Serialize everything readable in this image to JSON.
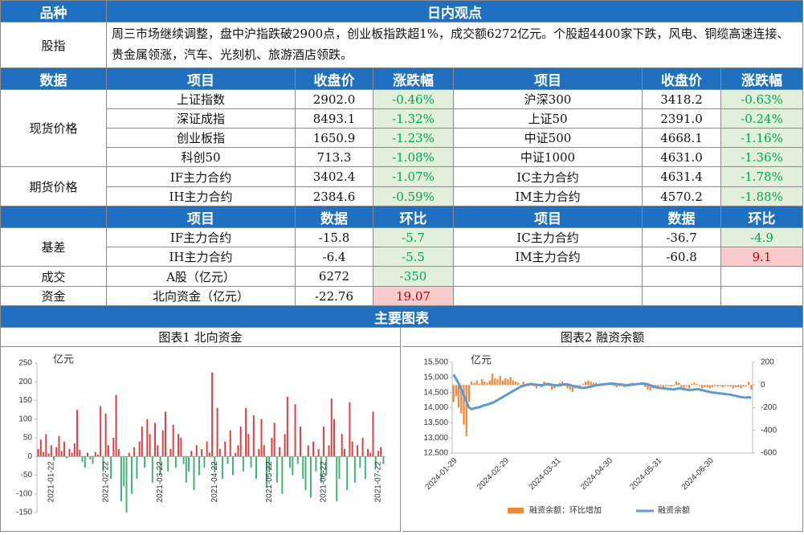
{
  "header": {
    "variety": "品种",
    "view": "日内观点"
  },
  "summary": {
    "label": "股指",
    "text": "周三市场继续调整，盘中沪指跌破2900点，创业板指跌超1%，成交额6272亿元。个股超4400家下跌，风电、铜缆高速连接、贵金属领涨，汽车、光刻机、旅游酒店领跌。"
  },
  "spot_header": [
    "数据",
    "项目",
    "收盘价",
    "涨跌幅",
    "项目",
    "收盘价",
    "涨跌幅"
  ],
  "spot": {
    "label": "现货价格",
    "rows": [
      [
        "上证指数",
        "2902.0",
        "-0.46%",
        "沪深300",
        "3418.2",
        "-0.63%"
      ],
      [
        "深证成指",
        "8493.1",
        "-1.32%",
        "上证50",
        "2391.0",
        "-0.24%"
      ],
      [
        "创业板指",
        "1650.9",
        "-1.23%",
        "中证500",
        "4668.1",
        "-1.16%"
      ],
      [
        "科创50",
        "713.3",
        "-1.08%",
        "中证1000",
        "4631.0",
        "-1.36%"
      ]
    ]
  },
  "futures": {
    "label": "期货价格",
    "rows": [
      [
        "IF主力合约",
        "3402.4",
        "-1.07%",
        "IC主力合约",
        "4631.4",
        "-1.78%"
      ],
      [
        "IH主力合约",
        "2384.6",
        "-0.59%",
        "IM主力合约",
        "4570.2",
        "-1.88%"
      ]
    ]
  },
  "basis_header": [
    "项目",
    "数据",
    "环比",
    "项目",
    "数据",
    "环比"
  ],
  "basis": {
    "label": "基差",
    "rows": [
      [
        "IF主力合约",
        "-15.8",
        "-5.7",
        "IC主力合约",
        "-36.7",
        "-4.9"
      ],
      [
        "IH主力合约",
        "-6.4",
        "-5.5",
        "IM主力合约",
        "-60.8",
        "9.1"
      ]
    ]
  },
  "volume": {
    "label": "成交",
    "row": [
      "A股（亿元）",
      "6272",
      "-350"
    ]
  },
  "flow": {
    "label": "资金",
    "row": [
      "北向资金（亿元）",
      "-22.76",
      "19.07"
    ]
  },
  "section_title": "主要图表",
  "chart_data": [
    {
      "type": "bar",
      "title": "图表1  北向资金",
      "y_label": "亿元",
      "color_positive": "#e0393e",
      "color_negative": "#3cb371",
      "ylim": [
        -150,
        250
      ],
      "yticks": [
        -150,
        -100,
        -50,
        0,
        50,
        100,
        150,
        200,
        250
      ],
      "categories": [
        null,
        null,
        null,
        null,
        null,
        "2021-01-22",
        null,
        null,
        null,
        null,
        null,
        null,
        null,
        null,
        null,
        null,
        null,
        null,
        null,
        null,
        null,
        null,
        null,
        null,
        null,
        null,
        "2021-02-22",
        null,
        null,
        null,
        null,
        null,
        null,
        null,
        null,
        null,
        null,
        null,
        null,
        null,
        null,
        null,
        null,
        null,
        null,
        null,
        null,
        "2021-03-22",
        null,
        null,
        null,
        null,
        null,
        null,
        null,
        null,
        null,
        null,
        null,
        null,
        null,
        null,
        null,
        null,
        null,
        null,
        null,
        null,
        "2021-04-22",
        null,
        null,
        null,
        null,
        null,
        null,
        null,
        null,
        null,
        null,
        null,
        null,
        null,
        null,
        null,
        null,
        null,
        null,
        null,
        null,
        "2021-05-22",
        null,
        null,
        null,
        null,
        null,
        null,
        null,
        null,
        null,
        null,
        null,
        null,
        null,
        null,
        null,
        null,
        null,
        null,
        null,
        null,
        "2021-06-22",
        null,
        null,
        null,
        null,
        null,
        null,
        null,
        null,
        null,
        null,
        null,
        null,
        null,
        null,
        null,
        null,
        null,
        null,
        null,
        null,
        "2021-07-22",
        null,
        null
      ],
      "values": [
        20,
        45,
        12,
        60,
        8,
        30,
        -10,
        25,
        55,
        15,
        40,
        -5,
        20,
        10,
        35,
        125,
        18,
        -15,
        -30,
        10,
        -8,
        -20,
        12,
        5,
        135,
        -40,
        115,
        30,
        -60,
        50,
        165,
        20,
        -120,
        -80,
        -150,
        10,
        -100,
        25,
        -60,
        40,
        80,
        -30,
        100,
        60,
        -70,
        90,
        30,
        -50,
        70,
        120,
        -40,
        20,
        85,
        -30,
        60,
        50,
        -20,
        -70,
        -40,
        15,
        -90,
        30,
        -50,
        20,
        -30,
        40,
        10,
        225,
        -40,
        130,
        20,
        -60,
        40,
        -20,
        70,
        -50,
        10,
        30,
        80,
        -40,
        130,
        60,
        -30,
        110,
        -60,
        20,
        100,
        30,
        -80,
        -40,
        50,
        90,
        -70,
        25,
        -100,
        60,
        160,
        -30,
        -50,
        140,
        -20,
        80,
        -60,
        -90,
        30,
        -110,
        40,
        -40,
        20,
        -70,
        80,
        -50,
        30,
        155,
        100,
        -120,
        -60,
        60,
        20,
        -90,
        145,
        40,
        -70,
        30,
        -30,
        50,
        -60,
        20,
        10,
        120,
        -30,
        15,
        25,
        -20
      ]
    },
    {
      "type": "combo",
      "title": "图表2  融资余额",
      "y_label": "亿元",
      "ylim": [
        12500,
        15500
      ],
      "yticks": [
        {
          "value": 12500,
          "label": "12,500"
        },
        {
          "value": 13000,
          "label": "13,000"
        },
        {
          "value": 13500,
          "label": "13,500"
        },
        {
          "value": 14000,
          "label": "14,000"
        },
        {
          "value": 14500,
          "label": "14,500"
        },
        {
          "value": 15000,
          "label": "15,000"
        },
        {
          "value": 15500,
          "label": "15,500"
        }
      ],
      "y2lim": [
        -600,
        200
      ],
      "y2ticks": [
        -600,
        -400,
        -200,
        0,
        200
      ],
      "legend": "bottom",
      "categories": [
        "2024-01-29",
        null,
        null,
        null,
        null,
        null,
        null,
        null,
        null,
        null,
        null,
        null,
        null,
        null,
        null,
        null,
        null,
        null,
        null,
        null,
        "2024-02-29",
        null,
        null,
        null,
        null,
        null,
        null,
        null,
        null,
        null,
        null,
        null,
        null,
        null,
        null,
        null,
        null,
        null,
        null,
        null,
        "2024-03-31",
        null,
        null,
        null,
        null,
        null,
        null,
        null,
        null,
        null,
        null,
        null,
        null,
        null,
        null,
        null,
        null,
        null,
        null,
        null,
        "2024-04-30",
        null,
        null,
        null,
        null,
        null,
        null,
        null,
        null,
        null,
        null,
        null,
        null,
        null,
        null,
        null,
        null,
        null,
        null,
        "2024-05-31",
        null,
        null,
        null,
        null,
        null,
        null,
        null,
        null,
        null,
        null,
        null,
        null,
        null,
        null,
        null,
        null,
        null,
        null,
        null,
        "2024-06-30",
        null,
        null,
        null,
        null,
        null,
        null,
        null,
        null,
        null,
        null,
        null,
        null,
        null,
        null,
        null,
        null
      ],
      "series": [
        {
          "name": "融资余额：环比增加",
          "type": "bar",
          "axis": "y2",
          "color": "#f0883a",
          "values": [
            -150,
            -100,
            -200,
            -250,
            -350,
            -450,
            -150,
            30,
            20,
            40,
            10,
            50,
            30,
            20,
            40,
            100,
            60,
            50,
            80,
            40,
            60,
            50,
            70,
            40,
            30,
            20,
            -20,
            30,
            10,
            -10,
            20,
            -10,
            -30,
            10,
            -20,
            30,
            20,
            -10,
            -40,
            -30,
            10,
            20,
            30,
            -10,
            -30,
            -40,
            -60,
            -30,
            -20,
            -10,
            10,
            30,
            40,
            30,
            20,
            20,
            10,
            15,
            10,
            10,
            20,
            10,
            -10,
            -20,
            -10,
            -10,
            -20,
            -10,
            15,
            20,
            10,
            15,
            10,
            5,
            -20,
            -40,
            -50,
            -30,
            -30,
            -20,
            -10,
            -20,
            -10,
            -10,
            -15,
            -10,
            30,
            20,
            -20,
            -30,
            -10,
            -30,
            10,
            20,
            10,
            -10,
            -30,
            -20,
            -20,
            -30,
            -20,
            -10,
            -15,
            -10,
            -20,
            -10,
            -10,
            -15,
            -30,
            -20,
            -20,
            -30,
            -15,
            -10,
            30,
            -40
          ]
        },
        {
          "name": "融资余额",
          "type": "line",
          "axis": "y",
          "color": "#5b9bd5",
          "values": [
            15100,
            14950,
            14800,
            14600,
            14400,
            14200,
            14000,
            13950,
            13980,
            14000,
            14020,
            14050,
            14080,
            14100,
            14130,
            14160,
            14200,
            14250,
            14300,
            14350,
            14400,
            14450,
            14500,
            14550,
            14600,
            14650,
            14700,
            14720,
            14750,
            14770,
            14780,
            14770,
            14760,
            14750,
            14740,
            14760,
            14770,
            14780,
            14760,
            14740,
            14730,
            14740,
            14760,
            14780,
            14770,
            14750,
            14720,
            14700,
            14680,
            14660,
            14650,
            14660,
            14680,
            14700,
            14720,
            14740,
            14750,
            14760,
            14770,
            14780,
            14790,
            14800,
            14790,
            14780,
            14770,
            14760,
            14750,
            14740,
            14750,
            14760,
            14770,
            14780,
            14790,
            14800,
            14790,
            14770,
            14740,
            14710,
            14680,
            14660,
            14650,
            14640,
            14630,
            14620,
            14610,
            14600,
            14620,
            14640,
            14630,
            14610,
            14600,
            14580,
            14590,
            14600,
            14610,
            14600,
            14580,
            14560,
            14540,
            14520,
            14500,
            14490,
            14480,
            14470,
            14460,
            14450,
            14440,
            14430,
            14410,
            14390,
            14370,
            14350,
            14340,
            14330,
            14350,
            14320
          ]
        }
      ]
    }
  ]
}
